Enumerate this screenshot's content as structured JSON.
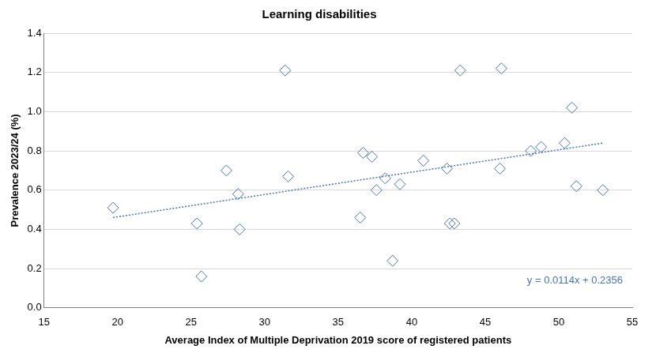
{
  "chart_data": {
    "type": "scatter",
    "title": "Learning disabilities",
    "x_label": "Average Index of Multiple Deprivation 2019 score of registered patients",
    "y_label": "Prevalence 2023/24 (%)",
    "x": [
      19.7,
      25.4,
      25.7,
      27.4,
      28.2,
      28.3,
      31.4,
      31.6,
      36.5,
      36.7,
      37.3,
      37.6,
      38.2,
      38.7,
      39.2,
      40.8,
      42.4,
      42.6,
      42.9,
      43.3,
      46.0,
      46.1,
      48.1,
      48.8,
      50.4,
      50.9,
      51.2,
      53.0
    ],
    "values": [
      0.51,
      0.43,
      0.16,
      0.7,
      0.58,
      0.4,
      1.21,
      0.67,
      0.46,
      0.79,
      0.77,
      0.6,
      0.66,
      0.24,
      0.63,
      0.75,
      0.71,
      0.43,
      0.43,
      1.21,
      0.71,
      1.22,
      0.8,
      0.82,
      0.84,
      1.02,
      0.62,
      0.6
    ],
    "color": "#4472c4",
    "marker": "diamond",
    "trendline": {
      "slope": 0.0114,
      "intercept": 0.2356,
      "color": "#4472c4",
      "line_style": "dotted"
    },
    "annotations": [
      {
        "text": "y = 0.0114x + 0.2356",
        "color": "#4472c4"
      }
    ],
    "xlim": [
      15,
      55
    ],
    "xticks": [
      15,
      20,
      25,
      30,
      35,
      40,
      45,
      50,
      55
    ],
    "ylim": [
      0,
      1.4
    ],
    "yticks": [
      {
        "value": 0,
        "label": "0.0"
      },
      0.2,
      0.4,
      0.6,
      0.8,
      {
        "value": 1,
        "label": "1.0"
      },
      1.2,
      1.4
    ],
    "grid": "y"
  }
}
